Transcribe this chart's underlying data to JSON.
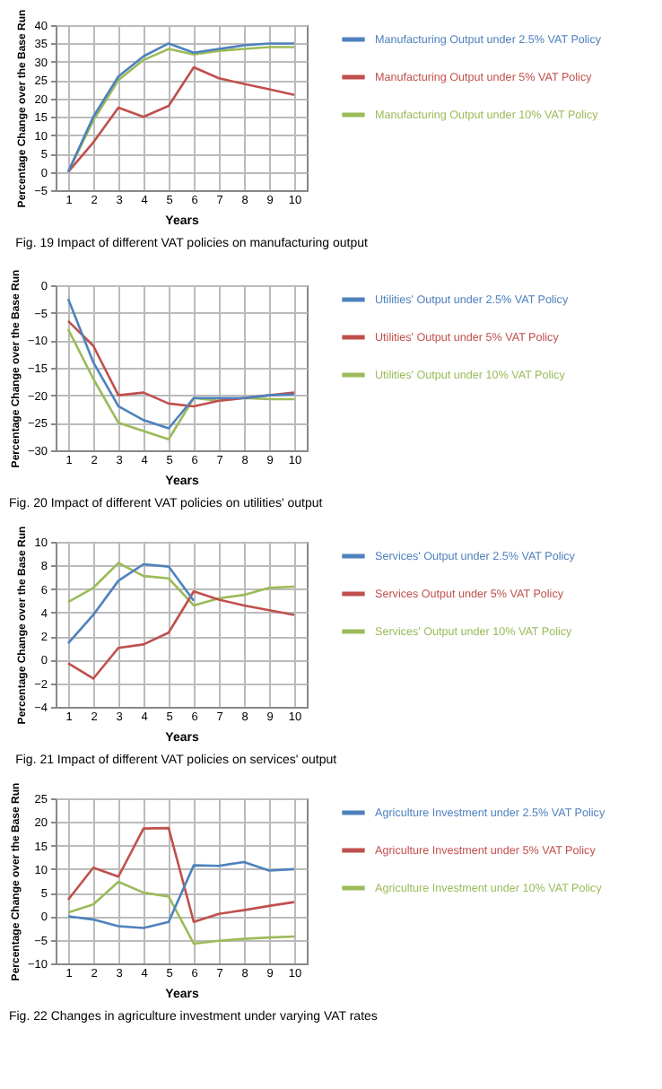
{
  "chart_data": [
    {
      "type": "line",
      "title": "Fig. 19  Impact of different VAT policies on manufacturing output",
      "xlabel": "Years",
      "ylabel": "Percentage Change over the Base Run",
      "categories": [
        "1",
        "2",
        "3",
        "4",
        "5",
        "6",
        "7",
        "8",
        "9",
        "10"
      ],
      "ylim": [
        -5,
        40
      ],
      "yticks": [
        -5,
        0,
        5,
        10,
        15,
        20,
        25,
        30,
        35,
        40
      ],
      "grid": true,
      "legend": "right",
      "marker": "none",
      "series": [
        {
          "name": "Manufacturing Output under 2.5% VAT Policy",
          "color": "#4f81bd",
          "values": [
            0,
            15,
            26,
            31.5,
            35,
            32.5,
            33.5,
            34.5,
            35,
            35
          ]
        },
        {
          "name": "Manufacturing Output under 5% VAT Policy",
          "color": "#c0504d",
          "values": [
            0,
            8,
            17.5,
            15,
            18,
            28.5,
            25.5,
            24,
            22.5,
            21
          ]
        },
        {
          "name": "Manufacturing Output under 10% VAT Policy",
          "color": "#9bbb59",
          "values": [
            0,
            14,
            25,
            30.5,
            33.5,
            32,
            33,
            33.5,
            34,
            34
          ]
        }
      ]
    },
    {
      "type": "line",
      "title": "Fig. 20  Impact of different VAT policies on utilities' output",
      "xlabel": "Years",
      "ylabel": "Percentage Change  over  the Base Run",
      "categories": [
        "1",
        "2",
        "3",
        "4",
        "5",
        "6",
        "7",
        "8",
        "9",
        "10"
      ],
      "ylim": [
        -30,
        0
      ],
      "yticks": [
        -30,
        -25,
        -20,
        -15,
        -10,
        -5,
        0
      ],
      "grid": true,
      "legend": "right",
      "marker": "none",
      "series": [
        {
          "name": "Utilities' Output under 2.5% VAT Policy",
          "color": "#4f81bd",
          "values": [
            -2.5,
            -14,
            -22,
            -24.5,
            -26,
            -20.5,
            -20.5,
            -20.5,
            -20,
            -19.8
          ]
        },
        {
          "name": "Utilities' Output under 5% VAT Policy",
          "color": "#c0504d",
          "values": [
            -6.5,
            -11,
            -20,
            -19.5,
            -21.5,
            -22,
            -21,
            -20.5,
            -20,
            -19.5
          ]
        },
        {
          "name": "Utilities' Output under 10% VAT Policy",
          "color": "#9bbb59",
          "values": [
            -8,
            -17,
            -25,
            -26.5,
            -28,
            -20.5,
            -21,
            -20.5,
            -20.7,
            -20.7
          ]
        }
      ]
    },
    {
      "type": "line",
      "title": "Fig. 21  Impact of different VAT policies on services' output",
      "xlabel": "Years",
      "ylabel": "Percentage Change over the Base Run",
      "categories": [
        "1",
        "2",
        "3",
        "4",
        "5",
        "6",
        "7",
        "8",
        "9",
        "10"
      ],
      "ylim": [
        -4,
        10
      ],
      "yticks": [
        -4,
        -2,
        0,
        2,
        4,
        6,
        8,
        10
      ],
      "grid": true,
      "legend": "right",
      "marker": "none",
      "series": [
        {
          "name": "Services' Output under 2.5% VAT Policy",
          "color": "#4f81bd",
          "values": [
            1.4,
            3.8,
            6.7,
            8.1,
            7.9,
            5,
            null,
            null,
            null,
            null
          ]
        },
        {
          "name": "Services Output under 5% VAT Policy",
          "color": "#c0504d",
          "values": [
            -0.3,
            -1.6,
            1,
            1.3,
            2.3,
            5.8,
            5.1,
            4.6,
            4.2,
            3.8
          ]
        },
        {
          "name": "Services' Output under 10% VAT Policy",
          "color": "#9bbb59",
          "values": [
            4.9,
            6.1,
            8.2,
            7.1,
            6.9,
            4.6,
            5.2,
            5.5,
            6.1,
            6.2
          ]
        }
      ]
    },
    {
      "type": "line",
      "title": "Fig. 22  Changes in agriculture investment under varying VAT rates",
      "xlabel": "Years",
      "ylabel": "Percentage Change over the Base Run",
      "categories": [
        "1",
        "2",
        "3",
        "4",
        "5",
        "6",
        "7",
        "8",
        "9",
        "10"
      ],
      "ylim": [
        -10,
        25
      ],
      "yticks": [
        -10,
        -5,
        0,
        5,
        10,
        15,
        20,
        25
      ],
      "grid": true,
      "legend": "right",
      "marker": "none",
      "series": [
        {
          "name": "Agriculture Investment under 2.5% VAT Policy",
          "color": "#4f81bd",
          "values": [
            0,
            -0.7,
            -2.1,
            -2.5,
            -1.2,
            10.8,
            10.7,
            11.5,
            9.7,
            10
          ]
        },
        {
          "name": "Agriculture Investment under 5% VAT Policy",
          "color": "#c0504d",
          "values": [
            3.5,
            10.3,
            8.4,
            18.6,
            18.7,
            -1.2,
            0.5,
            1.3,
            2.2,
            3
          ]
        },
        {
          "name": "Agriculture Investment under 10% VAT Policy",
          "color": "#9bbb59",
          "values": [
            0.8,
            2.5,
            7.3,
            5,
            4.2,
            -5.8,
            -5.2,
            -4.8,
            -4.5,
            -4.3
          ]
        }
      ]
    }
  ]
}
